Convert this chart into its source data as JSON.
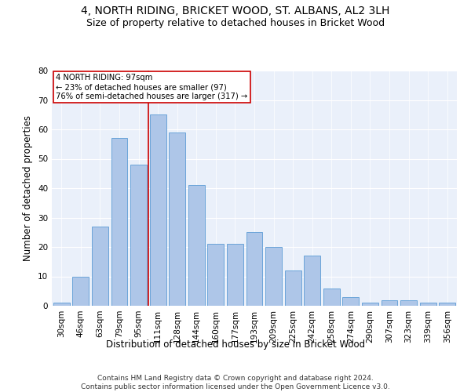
{
  "title": "4, NORTH RIDING, BRICKET WOOD, ST. ALBANS, AL2 3LH",
  "subtitle": "Size of property relative to detached houses in Bricket Wood",
  "xlabel": "Distribution of detached houses by size in Bricket Wood",
  "ylabel": "Number of detached properties",
  "bin_labels": [
    "30sqm",
    "46sqm",
    "63sqm",
    "79sqm",
    "95sqm",
    "111sqm",
    "128sqm",
    "144sqm",
    "160sqm",
    "177sqm",
    "193sqm",
    "209sqm",
    "225sqm",
    "242sqm",
    "258sqm",
    "274sqm",
    "290sqm",
    "307sqm",
    "323sqm",
    "339sqm",
    "356sqm"
  ],
  "values": [
    1,
    10,
    27,
    57,
    48,
    65,
    59,
    41,
    21,
    21,
    25,
    20,
    12,
    17,
    6,
    3,
    1,
    2,
    2,
    1,
    1
  ],
  "bar_color": "#AEC6E8",
  "bar_edgecolor": "#5B9BD5",
  "ref_line_label": "4 NORTH RIDING: 97sqm",
  "annotation_line1": "← 23% of detached houses are smaller (97)",
  "annotation_line2": "76% of semi-detached houses are larger (317) →",
  "ref_line_color": "#CC0000",
  "annotation_box_edgecolor": "#CC0000",
  "ylim": [
    0,
    80
  ],
  "yticks": [
    0,
    10,
    20,
    30,
    40,
    50,
    60,
    70,
    80
  ],
  "background_color": "#EAF0FA",
  "footer_line1": "Contains HM Land Registry data © Crown copyright and database right 2024.",
  "footer_line2": "Contains public sector information licensed under the Open Government Licence v3.0.",
  "title_fontsize": 10,
  "subtitle_fontsize": 9,
  "xlabel_fontsize": 8.5,
  "ylabel_fontsize": 8.5,
  "tick_fontsize": 7.5,
  "footer_fontsize": 6.5
}
